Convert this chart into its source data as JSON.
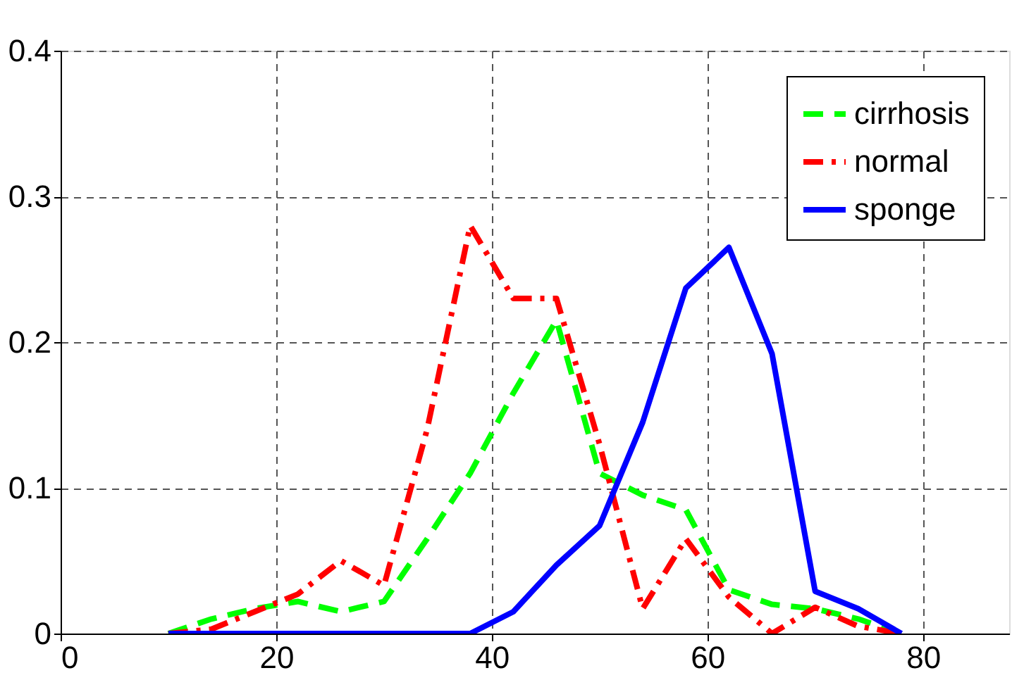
{
  "chart_data": {
    "type": "line",
    "x": [
      10,
      14,
      18,
      22,
      26,
      30,
      34,
      38,
      42,
      46,
      50,
      54,
      58,
      62,
      66,
      70,
      74,
      78
    ],
    "series": [
      {
        "name": "cirrhosis",
        "color": "#00ff00",
        "line_style": "dashed",
        "values": [
          0,
          0.01,
          0.017,
          0.022,
          0.015,
          0.022,
          0.065,
          0.11,
          0.165,
          0.215,
          0.11,
          0.095,
          0.085,
          0.03,
          0.02,
          0.017,
          0.01,
          0
        ]
      },
      {
        "name": "normal",
        "color": "#ff0000",
        "line_style": "dashdot",
        "values": [
          0,
          0.003,
          0.015,
          0.027,
          0.05,
          0.033,
          0.14,
          0.28,
          0.23,
          0.23,
          0.13,
          0.017,
          0.065,
          0.025,
          0,
          0.018,
          0.005,
          0
        ]
      },
      {
        "name": "sponge",
        "color": "#0000ff",
        "line_style": "solid",
        "values": [
          0,
          0,
          0,
          0,
          0,
          0,
          0,
          0,
          0.015,
          0.047,
          0.074,
          0.145,
          0.237,
          0.265,
          0.192,
          0.029,
          0.017,
          0
        ]
      }
    ],
    "xlim": [
      0,
      88
    ],
    "xticks": [
      0,
      20,
      40,
      60,
      80
    ],
    "ylim": [
      0,
      0.4
    ],
    "yticks": [
      0,
      0.1,
      0.2,
      0.3,
      0.4
    ],
    "grid": true,
    "legend": "top right",
    "marker": "none"
  }
}
